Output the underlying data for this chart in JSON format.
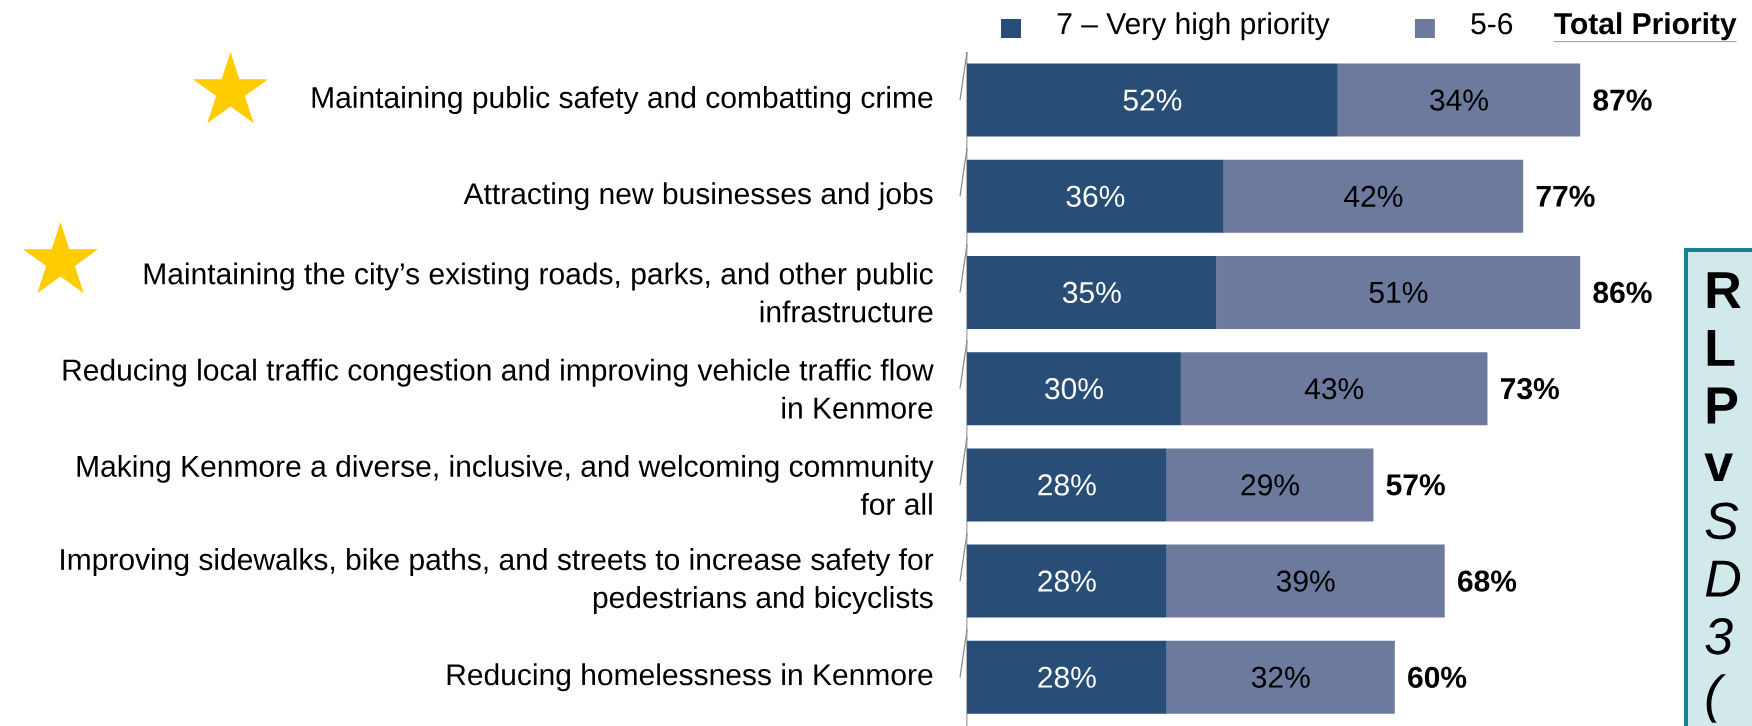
{
  "chart_data": {
    "type": "bar",
    "orientation": "horizontal",
    "stacked": true,
    "categories": [
      "Maintaining public safety and combatting crime",
      "Attracting new businesses and jobs",
      "Maintaining the city’s existing roads, parks, and other public infrastructure",
      "Reducing local traffic congestion and improving vehicle traffic flow in Kenmore",
      "Making Kenmore a diverse, inclusive, and welcoming community for all",
      "Improving sidewalks, bike paths, and streets to increase safety for pedestrians and bicyclists",
      "Reducing homelessness in Kenmore"
    ],
    "series": [
      {
        "name": "7 – Very high priority",
        "color": "#284d76",
        "values": [
          52,
          36,
          35,
          30,
          28,
          28,
          28
        ],
        "value_labels": [
          "52%",
          "36%",
          "35%",
          "30%",
          "28%",
          "28%",
          "28%"
        ]
      },
      {
        "name": "5-6",
        "color": "#6d7a9e",
        "values": [
          34,
          42,
          51,
          43,
          29,
          39,
          32
        ],
        "value_labels": [
          "34%",
          "42%",
          "51%",
          "43%",
          "29%",
          "39%",
          "32%"
        ]
      }
    ],
    "totals": [
      "87%",
      "77%",
      "86%",
      "73%",
      "57%",
      "68%",
      "60%"
    ],
    "legend": "top",
    "tick_labels": "y",
    "annotations": [
      "Total Priority",
      "R",
      "L",
      "P",
      "v",
      "S",
      "D",
      "3",
      "("
    ]
  }
}
